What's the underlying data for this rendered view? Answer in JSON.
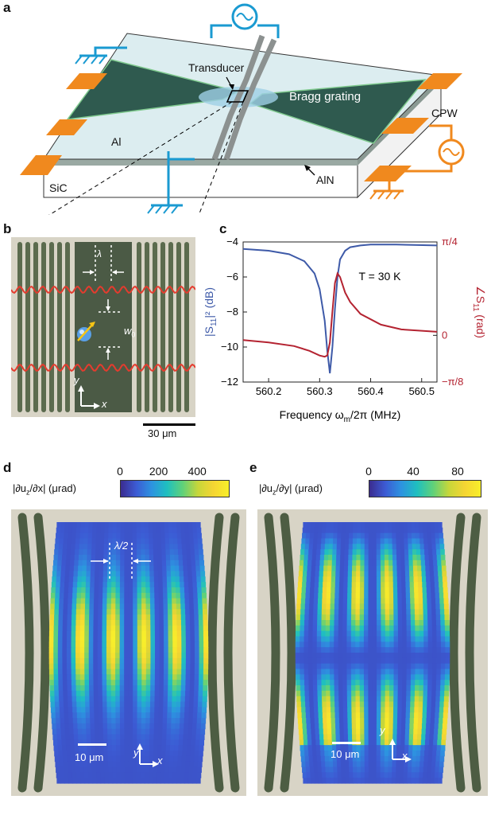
{
  "panel_a": {
    "letter": "a",
    "labels": {
      "transducer": "Transducer",
      "bragg": "Bragg grating",
      "al": "Al",
      "sic": "SiC",
      "aln": "AlN",
      "cpw": "CPW"
    },
    "colors": {
      "slab_top": "#dbeef0",
      "grating": "#2f5a4f",
      "ground": "#1a9ad1",
      "cpw": "#f0891e"
    }
  },
  "panel_b": {
    "letter": "b",
    "lambda": "λ",
    "w0": "w",
    "w0_sub": "0",
    "axis_y": "y",
    "axis_x": "x",
    "scalebar": "30 μm"
  },
  "panel_c": {
    "letter": "c",
    "chart_data": {
      "type": "line",
      "xlabel_pre": "Frequency ω",
      "xlabel_sub": "m",
      "xlabel_post": "/2π (MHz)",
      "ylabel_left_pre": "|S",
      "ylabel_left_sub": "11",
      "ylabel_left_post": "|² (dB)",
      "ylabel_right_pre": "∠S",
      "ylabel_right_sub": "11",
      "ylabel_right_post": " (rad)",
      "annotation": "T = 30 K",
      "xlim": [
        560.15,
        560.53
      ],
      "ylim_left": [
        -12,
        -4
      ],
      "ylim_right": [
        -0.3927,
        0.7854
      ],
      "x_ticks": [
        "560.2",
        "560.3",
        "560.4",
        "560.5"
      ],
      "x_tick_values": [
        560.2,
        560.3,
        560.4,
        560.5
      ],
      "y_left_ticks": [
        "-4",
        "-6",
        "-8",
        "-10",
        "-12"
      ],
      "y_left_tick_values": [
        -4,
        -6,
        -8,
        -10,
        -12
      ],
      "y_right_ticks": [
        "π/4",
        "0",
        "−π/8"
      ],
      "y_right_tick_values": [
        0.7854,
        0,
        -0.3927
      ],
      "grid": false,
      "series": [
        {
          "axis": "left",
          "color": "#3e5aa8",
          "x": [
            560.15,
            560.2,
            560.24,
            560.27,
            560.29,
            560.3,
            560.31,
            560.315,
            560.32,
            560.325,
            560.33,
            560.335,
            560.34,
            560.35,
            560.36,
            560.38,
            560.4,
            560.45,
            560.53
          ],
          "y": [
            -4.4,
            -4.5,
            -4.7,
            -5.1,
            -5.8,
            -6.7,
            -8.5,
            -10.2,
            -11.5,
            -10.0,
            -7.8,
            -6.0,
            -5.0,
            -4.5,
            -4.3,
            -4.2,
            -4.15,
            -4.15,
            -4.2
          ]
        },
        {
          "axis": "right",
          "color": "#b42331",
          "x": [
            560.15,
            560.2,
            560.25,
            560.28,
            560.3,
            560.31,
            560.315,
            560.32,
            560.325,
            560.33,
            560.335,
            560.34,
            560.35,
            560.36,
            560.38,
            560.42,
            560.46,
            560.53
          ],
          "y": [
            -0.04,
            -0.06,
            -0.09,
            -0.13,
            -0.17,
            -0.18,
            -0.17,
            -0.06,
            0.2,
            0.44,
            0.52,
            0.49,
            0.36,
            0.28,
            0.18,
            0.09,
            0.05,
            0.03
          ]
        }
      ]
    }
  },
  "panel_d": {
    "letter": "d",
    "colorbar_label_pre": "|∂u",
    "colorbar_label_sub": "z",
    "colorbar_label_post": "/∂x| (μrad)",
    "colorbar_ticks": [
      "0",
      "200",
      "400"
    ],
    "colorbar_tick_values": [
      0,
      200,
      400
    ],
    "colorbar_range": [
      0,
      560
    ],
    "half_lambda": "λ/2",
    "axis_y": "y",
    "axis_x": "x",
    "scalebar": "10 μm"
  },
  "panel_e": {
    "letter": "e",
    "colorbar_label_pre": "|∂u",
    "colorbar_label_sub": "z",
    "colorbar_label_post": "/∂y| (μrad)",
    "colorbar_ticks": [
      "0",
      "40",
      "80"
    ],
    "colorbar_tick_values": [
      0,
      40,
      80
    ],
    "colorbar_range": [
      0,
      100
    ],
    "axis_y": "y",
    "axis_x": "x",
    "scalebar": "10 μm"
  }
}
